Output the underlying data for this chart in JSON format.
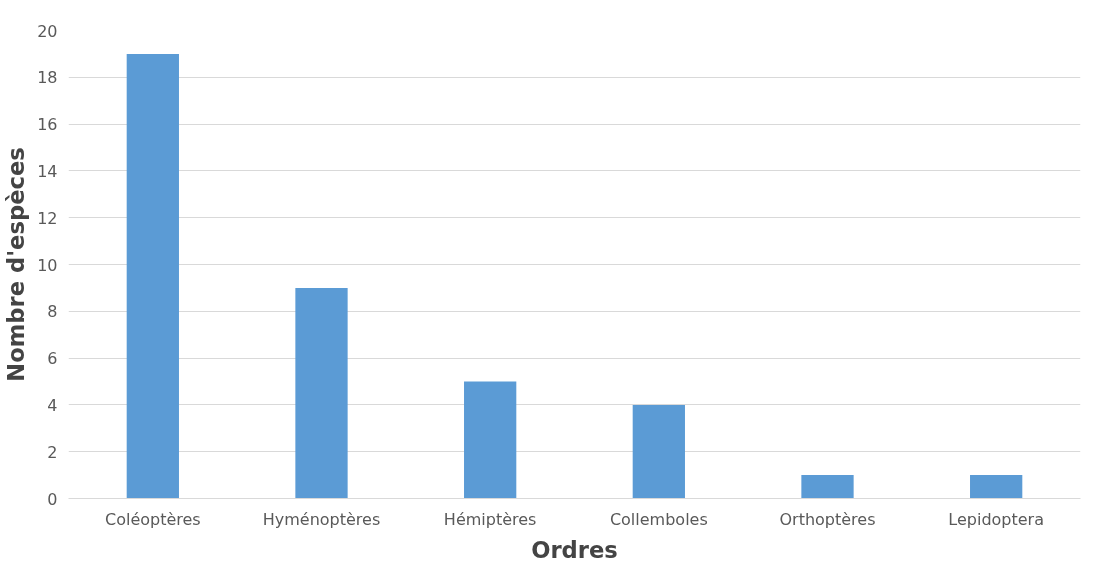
{
  "chart_data": {
    "type": "bar",
    "xlabel": "Ordres",
    "ylabel": "Nombre d'espèces",
    "categories": [
      "Coléoptères",
      "Hyménoptères",
      "Hémiptères",
      "Collemboles",
      "Orthoptères",
      "Lepidoptera"
    ],
    "values": [
      19,
      9,
      5,
      4,
      1,
      1
    ],
    "color": "#5b9bd5",
    "ylim": [
      0,
      20
    ],
    "yticks": [
      0,
      2,
      4,
      6,
      8,
      10,
      12,
      14,
      16,
      18,
      20
    ],
    "grid": "y"
  }
}
